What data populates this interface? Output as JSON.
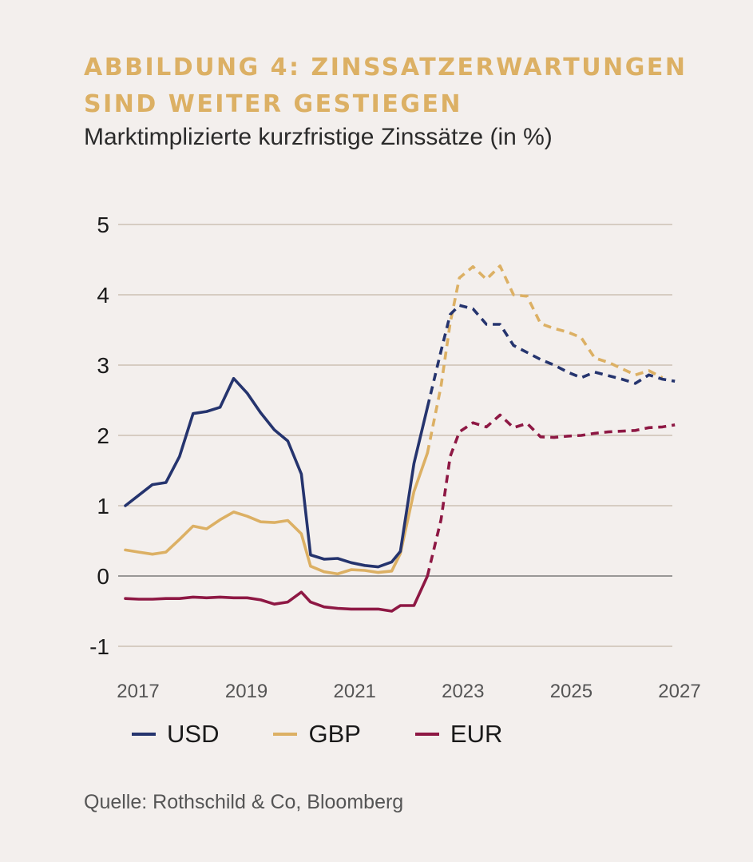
{
  "header": {
    "title": "ABBILDUNG 4: ZINSSATZERWARTUNGEN SIND WEITER GESTIEGEN",
    "subtitle": "Marktimplizierte kurzfristige Zinssätze (in %)"
  },
  "source": "Quelle: Rothschild & Co, Bloomberg",
  "colors": {
    "USD": "#25346e",
    "GBP": "#dcb064",
    "EUR": "#8e1844",
    "grid": "#b8a898",
    "zero": "#7a7a7a"
  },
  "chart_data": {
    "type": "line",
    "title": "ABBILDUNG 4: ZINSSATZERWARTUNGEN SIND WEITER GESTIEGEN",
    "subtitle": "Marktimplizierte kurzfristige Zinssätze (in %)",
    "xlabel": "",
    "ylabel": "",
    "xlim": [
      2017,
      2027
    ],
    "ylim": [
      -1,
      5
    ],
    "xticks": [
      "2017",
      "2019",
      "2021",
      "2023",
      "2025",
      "2027"
    ],
    "yticks": [
      "-1",
      "0",
      "1",
      "2",
      "3",
      "4",
      "5"
    ],
    "grid": true,
    "legend_position": "bottom",
    "series": [
      {
        "name": "USD",
        "color": "#25346e",
        "actual": [
          [
            2017.0,
            1.0
          ],
          [
            2017.25,
            1.15
          ],
          [
            2017.5,
            1.3
          ],
          [
            2017.75,
            1.33
          ],
          [
            2018.0,
            1.7
          ],
          [
            2018.25,
            2.31
          ],
          [
            2018.5,
            2.34
          ],
          [
            2018.75,
            2.4
          ],
          [
            2019.0,
            2.81
          ],
          [
            2019.25,
            2.6
          ],
          [
            2019.5,
            2.32
          ],
          [
            2019.75,
            2.08
          ],
          [
            2020.0,
            1.92
          ],
          [
            2020.25,
            1.45
          ],
          [
            2020.42,
            0.3
          ],
          [
            2020.67,
            0.24
          ],
          [
            2020.92,
            0.25
          ],
          [
            2021.17,
            0.19
          ],
          [
            2021.42,
            0.15
          ],
          [
            2021.67,
            0.13
          ],
          [
            2021.92,
            0.2
          ],
          [
            2022.08,
            0.35
          ],
          [
            2022.33,
            1.6
          ],
          [
            2022.58,
            2.4
          ]
        ],
        "forecast": [
          [
            2022.58,
            2.4
          ],
          [
            2022.83,
            3.2
          ],
          [
            2023.0,
            3.72
          ],
          [
            2023.17,
            3.85
          ],
          [
            2023.42,
            3.8
          ],
          [
            2023.67,
            3.58
          ],
          [
            2023.92,
            3.58
          ],
          [
            2024.17,
            3.28
          ],
          [
            2024.42,
            3.18
          ],
          [
            2024.67,
            3.08
          ],
          [
            2024.92,
            3.0
          ],
          [
            2025.17,
            2.9
          ],
          [
            2025.42,
            2.82
          ],
          [
            2025.67,
            2.9
          ],
          [
            2025.92,
            2.85
          ],
          [
            2026.17,
            2.8
          ],
          [
            2026.42,
            2.74
          ],
          [
            2026.67,
            2.86
          ],
          [
            2026.92,
            2.8
          ],
          [
            2027.15,
            2.77
          ]
        ]
      },
      {
        "name": "GBP",
        "color": "#dcb064",
        "actual": [
          [
            2017.0,
            0.37
          ],
          [
            2017.25,
            0.34
          ],
          [
            2017.5,
            0.31
          ],
          [
            2017.75,
            0.34
          ],
          [
            2018.0,
            0.52
          ],
          [
            2018.25,
            0.71
          ],
          [
            2018.5,
            0.67
          ],
          [
            2018.75,
            0.8
          ],
          [
            2019.0,
            0.91
          ],
          [
            2019.25,
            0.85
          ],
          [
            2019.5,
            0.77
          ],
          [
            2019.75,
            0.76
          ],
          [
            2020.0,
            0.79
          ],
          [
            2020.25,
            0.6
          ],
          [
            2020.42,
            0.14
          ],
          [
            2020.67,
            0.06
          ],
          [
            2020.92,
            0.03
          ],
          [
            2021.17,
            0.09
          ],
          [
            2021.42,
            0.08
          ],
          [
            2021.67,
            0.05
          ],
          [
            2021.92,
            0.07
          ],
          [
            2022.08,
            0.32
          ],
          [
            2022.33,
            1.2
          ],
          [
            2022.58,
            1.75
          ]
        ],
        "forecast": [
          [
            2022.58,
            1.75
          ],
          [
            2022.83,
            2.7
          ],
          [
            2023.0,
            3.6
          ],
          [
            2023.17,
            4.24
          ],
          [
            2023.42,
            4.4
          ],
          [
            2023.67,
            4.22
          ],
          [
            2023.92,
            4.41
          ],
          [
            2024.17,
            4.0
          ],
          [
            2024.42,
            3.98
          ],
          [
            2024.67,
            3.59
          ],
          [
            2024.92,
            3.52
          ],
          [
            2025.17,
            3.47
          ],
          [
            2025.42,
            3.39
          ],
          [
            2025.67,
            3.1
          ],
          [
            2025.92,
            3.04
          ],
          [
            2026.17,
            2.95
          ],
          [
            2026.42,
            2.86
          ],
          [
            2026.67,
            2.92
          ],
          [
            2026.92,
            2.82
          ]
        ]
      },
      {
        "name": "EUR",
        "color": "#8e1844",
        "actual": [
          [
            2017.0,
            -0.32
          ],
          [
            2017.25,
            -0.33
          ],
          [
            2017.5,
            -0.33
          ],
          [
            2017.75,
            -0.32
          ],
          [
            2018.0,
            -0.32
          ],
          [
            2018.25,
            -0.3
          ],
          [
            2018.5,
            -0.31
          ],
          [
            2018.75,
            -0.3
          ],
          [
            2019.0,
            -0.31
          ],
          [
            2019.25,
            -0.31
          ],
          [
            2019.5,
            -0.34
          ],
          [
            2019.75,
            -0.4
          ],
          [
            2020.0,
            -0.37
          ],
          [
            2020.25,
            -0.23
          ],
          [
            2020.42,
            -0.37
          ],
          [
            2020.67,
            -0.44
          ],
          [
            2020.92,
            -0.46
          ],
          [
            2021.17,
            -0.47
          ],
          [
            2021.42,
            -0.47
          ],
          [
            2021.67,
            -0.47
          ],
          [
            2021.92,
            -0.5
          ],
          [
            2022.08,
            -0.42
          ],
          [
            2022.33,
            -0.42
          ],
          [
            2022.58,
            0.0
          ]
        ],
        "forecast": [
          [
            2022.58,
            0.0
          ],
          [
            2022.83,
            0.8
          ],
          [
            2023.0,
            1.7
          ],
          [
            2023.17,
            2.05
          ],
          [
            2023.42,
            2.18
          ],
          [
            2023.67,
            2.12
          ],
          [
            2023.92,
            2.29
          ],
          [
            2024.17,
            2.11
          ],
          [
            2024.42,
            2.17
          ],
          [
            2024.67,
            1.98
          ],
          [
            2024.92,
            1.97
          ],
          [
            2025.17,
            1.99
          ],
          [
            2025.42,
            2.0
          ],
          [
            2025.67,
            2.03
          ],
          [
            2025.92,
            2.05
          ],
          [
            2026.17,
            2.06
          ],
          [
            2026.42,
            2.07
          ],
          [
            2026.67,
            2.11
          ],
          [
            2026.92,
            2.12
          ],
          [
            2027.15,
            2.15
          ]
        ]
      }
    ]
  }
}
